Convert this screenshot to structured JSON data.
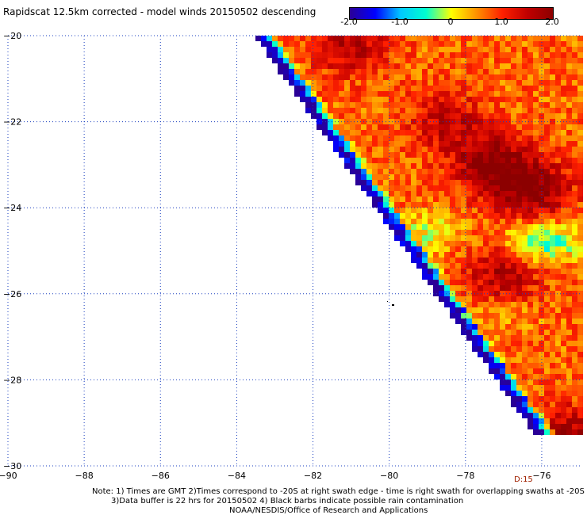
{
  "chart_data": {
    "type": "heatmap",
    "title": "Rapidscat 12.5km corrected - model winds 20150502 descending",
    "colorbar": {
      "ticks": [
        "-2.0",
        "-1.0",
        "0",
        "1.0",
        "2.0"
      ],
      "range": [
        -2.0,
        2.0
      ],
      "colors": [
        "#2a0096",
        "#0000ff",
        "#00c8ff",
        "#00ffd0",
        "#ffff00",
        "#ff9000",
        "#ff2000",
        "#c00000",
        "#8c0000"
      ]
    },
    "x_ticks": [
      "-90",
      "-88",
      "-86",
      "-84",
      "-82",
      "-80",
      "-78",
      "-76"
    ],
    "y_ticks": [
      "-20",
      "-22",
      "-24",
      "-26",
      "-28",
      "-30"
    ],
    "xlim": [
      -90,
      -75
    ],
    "ylim": [
      -30,
      -20
    ],
    "grid": true,
    "swath_edge": {
      "top_lon": -83.4,
      "bottom_lon": -75.5
    },
    "hotspots": [
      {
        "lon": -77.3,
        "lat": -23.0,
        "value": 2.0
      },
      {
        "lon": -76.2,
        "lat": -23.6,
        "value": 1.9
      },
      {
        "lon": -77.0,
        "lat": -25.5,
        "value": 1.7
      },
      {
        "lon": -78.5,
        "lat": -22.0,
        "value": 1.5
      },
      {
        "lon": -81.0,
        "lat": -20.2,
        "value": 1.6
      },
      {
        "lon": -75.2,
        "lat": -29.3,
        "value": 1.7
      }
    ],
    "coldspots": [
      {
        "lon": -76.0,
        "lat": -24.8,
        "value": -0.6
      },
      {
        "lon": -79.0,
        "lat": -24.6,
        "value": 0.0
      },
      {
        "lon": -77.0,
        "lat": -26.5,
        "value": 0.4
      }
    ],
    "pass_label": "D:15"
  },
  "notes": {
    "line1": "Note: 1) Times are GMT 2)Times correspond to -20S at right swath edge - time is right swath for overlapping swaths at -20S",
    "line2": "3)Data buffer is 22 hrs for 20150502 4) Black barbs indicate possible rain contamination",
    "line3": "NOAA/NESDIS/Office of Research and Applications"
  }
}
